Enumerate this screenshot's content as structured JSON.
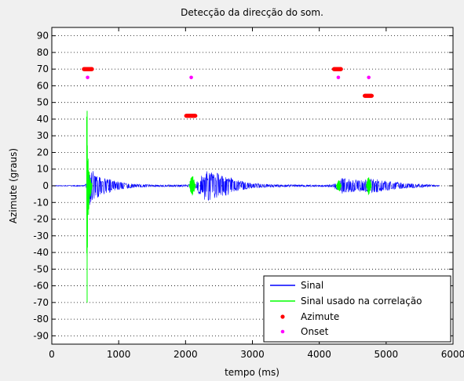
{
  "chart_data": {
    "type": "line",
    "title": "Detecção da direcção do som.",
    "xlabel": "tempo (ms)",
    "ylabel": "Azimute (graus)",
    "xlim": [
      0,
      6000
    ],
    "ylim": [
      -95,
      95
    ],
    "xticks": [
      0,
      1000,
      2000,
      3000,
      4000,
      5000,
      6000
    ],
    "xtick_labels": [
      "0",
      "1000",
      "2000",
      "3000",
      "4000",
      "5000",
      "6000"
    ],
    "yticks": [
      90,
      80,
      70,
      60,
      50,
      40,
      30,
      20,
      10,
      0,
      -10,
      -20,
      -30,
      -40,
      -50,
      -60,
      -70,
      -80,
      -90
    ],
    "ytick_labels": [
      "90",
      "80",
      "70",
      "60",
      "50",
      "40",
      "30",
      "20",
      "10",
      "0",
      "-10",
      "-20",
      "-30",
      "-40",
      "-50",
      "-60",
      "-70",
      "-80",
      "-90"
    ],
    "grid": "horizontal dotted",
    "legend_position": "bottom-right",
    "legend": [
      {
        "label": "Sinal",
        "kind": "line",
        "color": "#0000ff"
      },
      {
        "label": "Sinal usado na correlação",
        "kind": "line",
        "color": "#00ff00"
      },
      {
        "label": "Azimute",
        "kind": "marker",
        "color": "#ff0000"
      },
      {
        "label": "Onset",
        "kind": "marker",
        "color": "#ff00ff"
      }
    ],
    "series": [
      {
        "name": "Sinal",
        "color": "#0000ff",
        "envelope": [
          {
            "x": 0,
            "amp": 0.2
          },
          {
            "x": 480,
            "amp": 0.3
          },
          {
            "x": 520,
            "amp": 1.5
          },
          {
            "x": 560,
            "amp": 12
          },
          {
            "x": 650,
            "amp": 8
          },
          {
            "x": 800,
            "amp": 5
          },
          {
            "x": 1000,
            "amp": 2.5
          },
          {
            "x": 1200,
            "amp": 1.2
          },
          {
            "x": 1500,
            "amp": 0.6
          },
          {
            "x": 2000,
            "amp": 0.6
          },
          {
            "x": 2150,
            "amp": 1
          },
          {
            "x": 2200,
            "amp": 5
          },
          {
            "x": 2300,
            "amp": 9
          },
          {
            "x": 2450,
            "amp": 8
          },
          {
            "x": 2600,
            "amp": 6
          },
          {
            "x": 2800,
            "amp": 3
          },
          {
            "x": 3000,
            "amp": 1.5
          },
          {
            "x": 3300,
            "amp": 0.8
          },
          {
            "x": 4000,
            "amp": 0.5
          },
          {
            "x": 4200,
            "amp": 0.8
          },
          {
            "x": 4350,
            "amp": 5
          },
          {
            "x": 4450,
            "amp": 4
          },
          {
            "x": 4600,
            "amp": 3.5
          },
          {
            "x": 4700,
            "amp": 4
          },
          {
            "x": 4800,
            "amp": 4.5
          },
          {
            "x": 5000,
            "amp": 3
          },
          {
            "x": 5300,
            "amp": 1.5
          },
          {
            "x": 5600,
            "amp": 0.8
          },
          {
            "x": 5800,
            "amp": 0.3
          }
        ]
      },
      {
        "name": "Sinal usado na correlação",
        "color": "#00ff00",
        "segments": [
          {
            "x0": 520,
            "x1": 600,
            "peak": 45,
            "trough": -70
          },
          {
            "x0": 2050,
            "x1": 2150,
            "peak": 6,
            "trough": -6
          },
          {
            "x0": 4250,
            "x1": 4330,
            "peak": 4,
            "trough": -4
          },
          {
            "x0": 4700,
            "x1": 4780,
            "peak": 6,
            "trough": -6
          }
        ]
      }
    ],
    "azimute": [
      {
        "x0": 480,
        "x1": 600,
        "y": 70
      },
      {
        "x0": 2010,
        "x1": 2150,
        "y": 42
      },
      {
        "x0": 4220,
        "x1": 4330,
        "y": 70
      },
      {
        "x0": 4680,
        "x1": 4790,
        "y": 54
      }
    ],
    "onset": [
      {
        "x": 535,
        "y": 65
      },
      {
        "x": 2085,
        "y": 65
      },
      {
        "x": 4285,
        "y": 65
      },
      {
        "x": 4740,
        "y": 65
      }
    ]
  }
}
